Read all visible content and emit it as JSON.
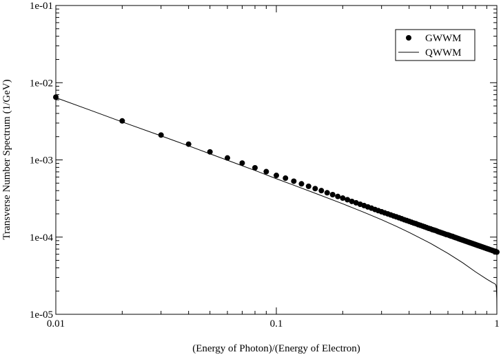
{
  "chart_data": {
    "type": "scatter",
    "title": "",
    "xlabel": "(Energy of Photon)/(Energy of Electron)",
    "ylabel": "Transverse Number Spectrum (1/GeV)",
    "xscale": "log",
    "yscale": "log",
    "xlim": [
      0.01,
      1
    ],
    "ylim": [
      1e-05,
      0.1
    ],
    "x_tick_labels": [
      {
        "value": 0.01,
        "label": "0.01"
      },
      {
        "value": 0.1,
        "label": "0.1"
      },
      {
        "value": 1,
        "label": "1"
      }
    ],
    "y_tick_labels": [
      {
        "value": 0.1,
        "label": "1e-01"
      },
      {
        "value": 0.01,
        "label": "1e-02"
      },
      {
        "value": 0.001,
        "label": "1e-03"
      },
      {
        "value": 0.0001,
        "label": "1e-04"
      },
      {
        "value": 1e-05,
        "label": "1e-05"
      }
    ],
    "grid": false,
    "legend_position": "top-right",
    "series": [
      {
        "name": "GWWM",
        "style": "markers",
        "color": "#000000",
        "points": [
          [
            0.01,
            0.0065
          ],
          [
            0.02,
            0.0032
          ],
          [
            0.03,
            0.0021
          ],
          [
            0.04,
            0.0016
          ],
          [
            0.05,
            0.00127
          ],
          [
            0.06,
            0.00106
          ],
          [
            0.07,
            0.00091
          ],
          [
            0.08,
            0.00079
          ],
          [
            0.09,
            0.000705
          ],
          [
            0.1,
            0.00063
          ],
          [
            0.11,
            0.00058
          ],
          [
            0.12,
            0.00053
          ],
          [
            0.13,
            0.00049
          ],
          [
            0.14,
            0.000455
          ],
          [
            0.15,
            0.000425
          ],
          [
            0.16,
            0.0004
          ],
          [
            0.17,
            0.000375
          ],
          [
            0.18,
            0.000355
          ],
          [
            0.19,
            0.000336
          ],
          [
            0.2,
            0.00032
          ],
          [
            0.21,
            0.000305
          ],
          [
            0.22,
            0.00029
          ],
          [
            0.23,
            0.000278
          ],
          [
            0.24,
            0.000266
          ],
          [
            0.25,
            0.000256
          ],
          [
            0.26,
            0.000246
          ],
          [
            0.27,
            0.000237
          ],
          [
            0.28,
            0.000228
          ],
          [
            0.29,
            0.00022
          ],
          [
            0.3,
            0.000213
          ],
          [
            0.31,
            0.000206
          ],
          [
            0.32,
            0.0002
          ],
          [
            0.33,
            0.000194
          ],
          [
            0.34,
            0.000188
          ],
          [
            0.35,
            0.000183
          ],
          [
            0.36,
            0.000178
          ],
          [
            0.37,
            0.000173
          ],
          [
            0.38,
            0.000168
          ],
          [
            0.39,
            0.000164
          ],
          [
            0.4,
            0.00016
          ],
          [
            0.41,
            0.000156
          ],
          [
            0.42,
            0.000152
          ],
          [
            0.43,
            0.000149
          ],
          [
            0.44,
            0.000145
          ],
          [
            0.45,
            0.000142
          ],
          [
            0.46,
            0.000139
          ],
          [
            0.47,
            0.000136
          ],
          [
            0.48,
            0.000133
          ],
          [
            0.49,
            0.00013
          ],
          [
            0.5,
            0.000128
          ],
          [
            0.51,
            0.000125
          ],
          [
            0.52,
            0.000123
          ],
          [
            0.53,
            0.000121
          ],
          [
            0.54,
            0.000118
          ],
          [
            0.55,
            0.000116
          ],
          [
            0.56,
            0.000114
          ],
          [
            0.57,
            0.000112
          ],
          [
            0.58,
            0.00011
          ],
          [
            0.59,
            0.000108
          ],
          [
            0.6,
            0.000107
          ],
          [
            0.61,
            0.000105
          ],
          [
            0.62,
            0.000103
          ],
          [
            0.63,
            0.000102
          ],
          [
            0.64,
            0.0001
          ],
          [
            0.65,
            9.85e-05
          ],
          [
            0.66,
            9.7e-05
          ],
          [
            0.67,
            9.55e-05
          ],
          [
            0.68,
            9.4e-05
          ],
          [
            0.69,
            9.27e-05
          ],
          [
            0.7,
            9.14e-05
          ],
          [
            0.71,
            9.01e-05
          ],
          [
            0.72,
            8.89e-05
          ],
          [
            0.73,
            8.76e-05
          ],
          [
            0.74,
            8.65e-05
          ],
          [
            0.75,
            8.53e-05
          ],
          [
            0.76,
            8.42e-05
          ],
          [
            0.77,
            8.31e-05
          ],
          [
            0.78,
            8.2e-05
          ],
          [
            0.79,
            8.1e-05
          ],
          [
            0.8,
            8e-05
          ],
          [
            0.81,
            7.9e-05
          ],
          [
            0.82,
            7.8e-05
          ],
          [
            0.83,
            7.71e-05
          ],
          [
            0.84,
            7.62e-05
          ],
          [
            0.85,
            7.53e-05
          ],
          [
            0.86,
            7.44e-05
          ],
          [
            0.87,
            7.36e-05
          ],
          [
            0.88,
            7.27e-05
          ],
          [
            0.89,
            7.19e-05
          ],
          [
            0.9,
            7.11e-05
          ],
          [
            0.91,
            7.03e-05
          ],
          [
            0.92,
            6.96e-05
          ],
          [
            0.93,
            6.88e-05
          ],
          [
            0.94,
            6.81e-05
          ],
          [
            0.95,
            6.74e-05
          ],
          [
            0.96,
            6.67e-05
          ],
          [
            0.97,
            6.6e-05
          ],
          [
            0.98,
            6.53e-05
          ],
          [
            0.99,
            6.47e-05
          ],
          [
            1.0,
            6.4e-05
          ]
        ]
      },
      {
        "name": "QWWM",
        "style": "line",
        "color": "#000000",
        "points": [
          [
            0.01,
            0.0064
          ],
          [
            0.015,
            0.0042
          ],
          [
            0.02,
            0.0031
          ],
          [
            0.03,
            0.00205
          ],
          [
            0.04,
            0.00152
          ],
          [
            0.05,
            0.0012
          ],
          [
            0.06,
            0.00099
          ],
          [
            0.07,
            0.00084
          ],
          [
            0.08,
            0.00073
          ],
          [
            0.1,
            0.00057
          ],
          [
            0.12,
            0.00047
          ],
          [
            0.15,
            0.00037
          ],
          [
            0.2,
            0.00027
          ],
          [
            0.25,
            0.000209
          ],
          [
            0.3,
            0.000168
          ],
          [
            0.35,
            0.000138
          ],
          [
            0.4,
            0.000115
          ],
          [
            0.5,
            8.3e-05
          ],
          [
            0.6,
            6.15e-05
          ],
          [
            0.7,
            4.65e-05
          ],
          [
            0.8,
            3.55e-05
          ],
          [
            0.9,
            2.85e-05
          ],
          [
            0.95,
            2.6e-05
          ],
          [
            0.98,
            2.48e-05
          ],
          [
            0.99,
            2.4e-05
          ],
          [
            0.995,
            2.2e-05
          ],
          [
            0.999,
            1.6e-05
          ],
          [
            1.0,
            1e-05
          ]
        ]
      }
    ]
  }
}
